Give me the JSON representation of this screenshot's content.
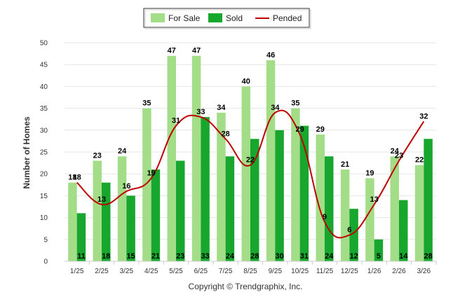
{
  "chart_data": {
    "type": "bar",
    "categories": [
      "1/25",
      "2/25",
      "3/25",
      "4/25",
      "5/25",
      "6/25",
      "7/25",
      "8/25",
      "9/25",
      "10/25",
      "11/25",
      "12/25",
      "1/26",
      "2/26",
      "3/26"
    ],
    "series": [
      {
        "name": "For Sale",
        "type": "bar",
        "color": "#a3dd88",
        "values": [
          18,
          23,
          24,
          35,
          47,
          47,
          34,
          40,
          46,
          35,
          29,
          21,
          19,
          24,
          22
        ]
      },
      {
        "name": "Sold",
        "type": "bar",
        "color": "#17a62e",
        "values": [
          11,
          18,
          15,
          21,
          23,
          33,
          24,
          28,
          30,
          31,
          24,
          12,
          5,
          14,
          28
        ]
      },
      {
        "name": "Pended",
        "type": "line",
        "color": "#c00000",
        "values": [
          18,
          13,
          16,
          19,
          31,
          33,
          28,
          22,
          34,
          29,
          9,
          6,
          13,
          23,
          32
        ]
      }
    ],
    "ylabel": "Number of Homes",
    "ylim": [
      0,
      50
    ],
    "yticks": [
      0,
      5,
      10,
      15,
      20,
      25,
      30,
      35,
      40,
      45,
      50
    ],
    "grid": true,
    "legend_position": "top-center"
  },
  "footer": {
    "copyright": "Copyright © Trendgraphix, Inc."
  }
}
